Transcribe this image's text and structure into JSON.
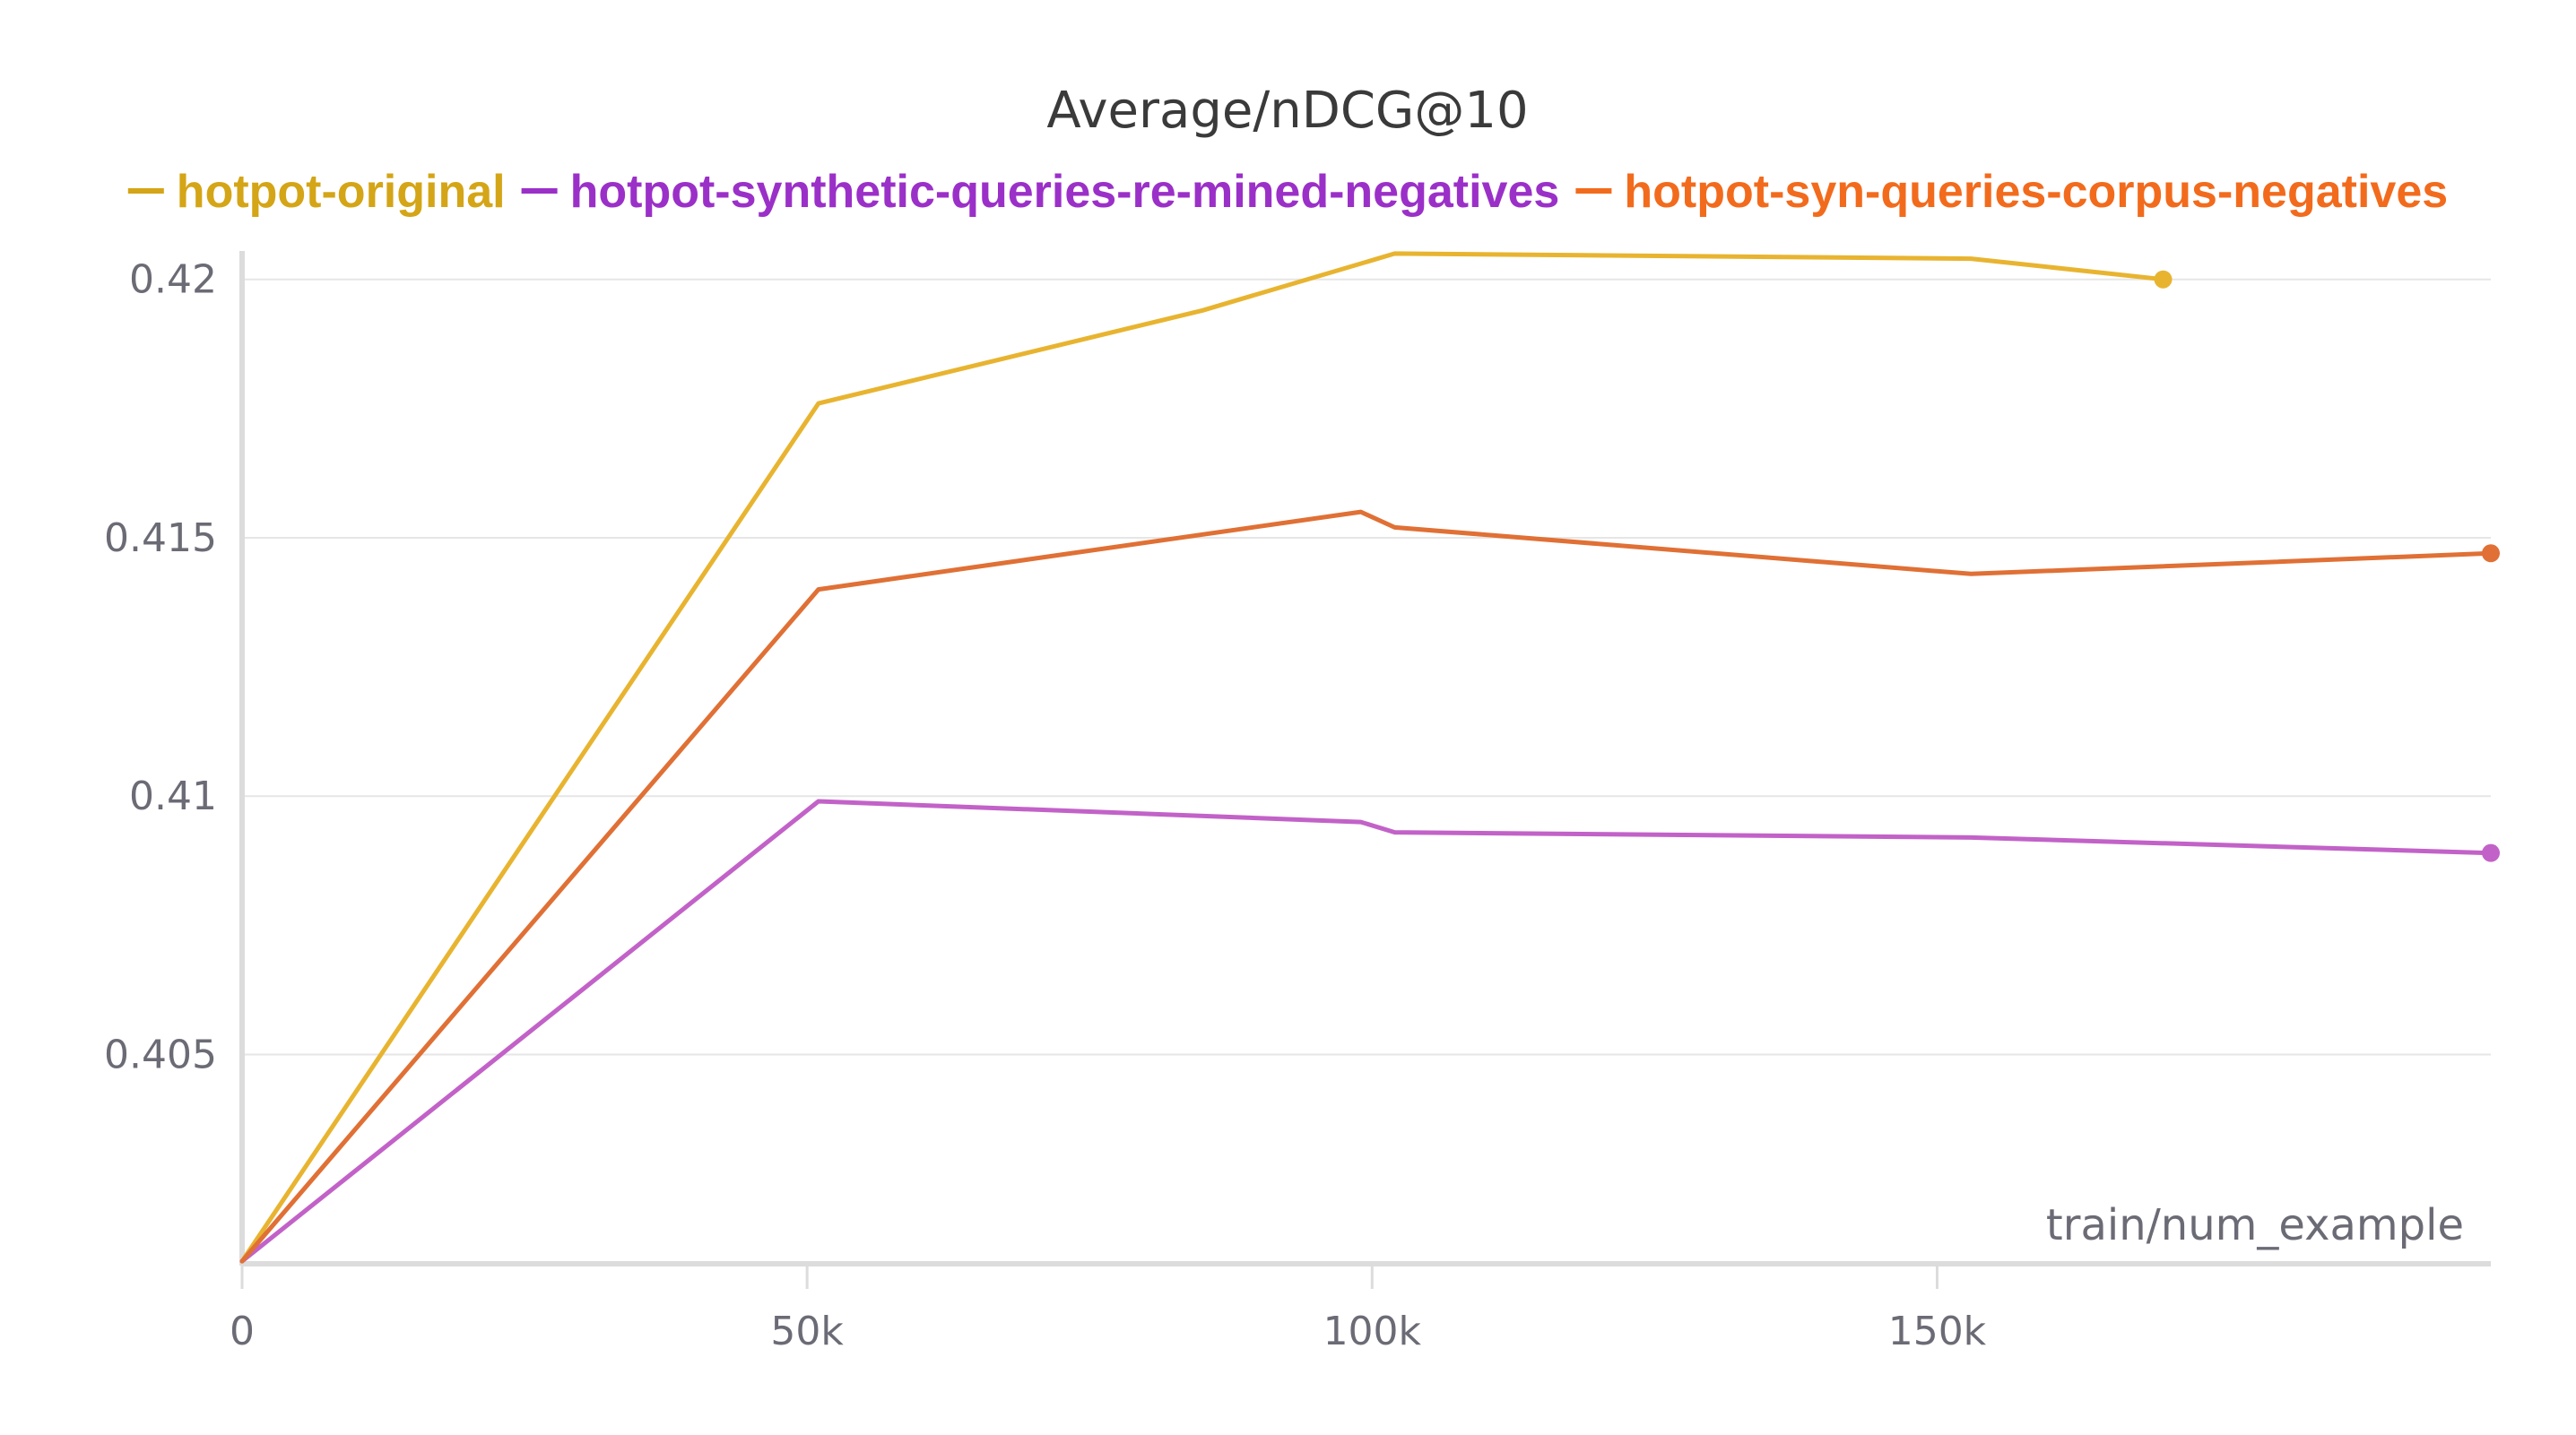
{
  "chart_data": {
    "type": "line",
    "title": "Average/nDCG@10",
    "xlabel": "train/num_example",
    "ylabel": "",
    "xlim": [
      0,
      199000
    ],
    "ylim": [
      0.40095,
      0.42055
    ],
    "x_ticks": [
      0,
      50000,
      100000,
      150000
    ],
    "x_tick_labels": [
      "0",
      "50k",
      "100k",
      "150k"
    ],
    "y_ticks": [
      0.405,
      0.41,
      0.415,
      0.42
    ],
    "y_tick_labels": [
      "0.405",
      "0.41",
      "0.415",
      "0.42"
    ],
    "grid": true,
    "legend_position": "top",
    "series": [
      {
        "name": "hotpot-original",
        "color": "#E8B430",
        "legend_color": "#D4A516",
        "x": [
          0,
          51000,
          85000,
          102000,
          153000,
          170000
        ],
        "y": [
          0.401,
          0.4176,
          0.4194,
          0.4205,
          0.4204,
          0.42
        ]
      },
      {
        "name": "hotpot-synthetic-queries-re-mined-negatives",
        "color": "#C262C8",
        "legend_color": "#9B30C8",
        "x": [
          0,
          51000,
          99000,
          102000,
          153000,
          199000
        ],
        "y": [
          0.401,
          0.4099,
          0.4095,
          0.4093,
          0.4092,
          0.4089
        ]
      },
      {
        "name": "hotpot-syn-queries-corpus-negatives",
        "color": "#E07035",
        "legend_color": "#F26B1D",
        "x": [
          0,
          51000,
          99000,
          102000,
          153000,
          199000
        ],
        "y": [
          0.401,
          0.414,
          0.4155,
          0.4152,
          0.4143,
          0.4147
        ]
      }
    ]
  }
}
